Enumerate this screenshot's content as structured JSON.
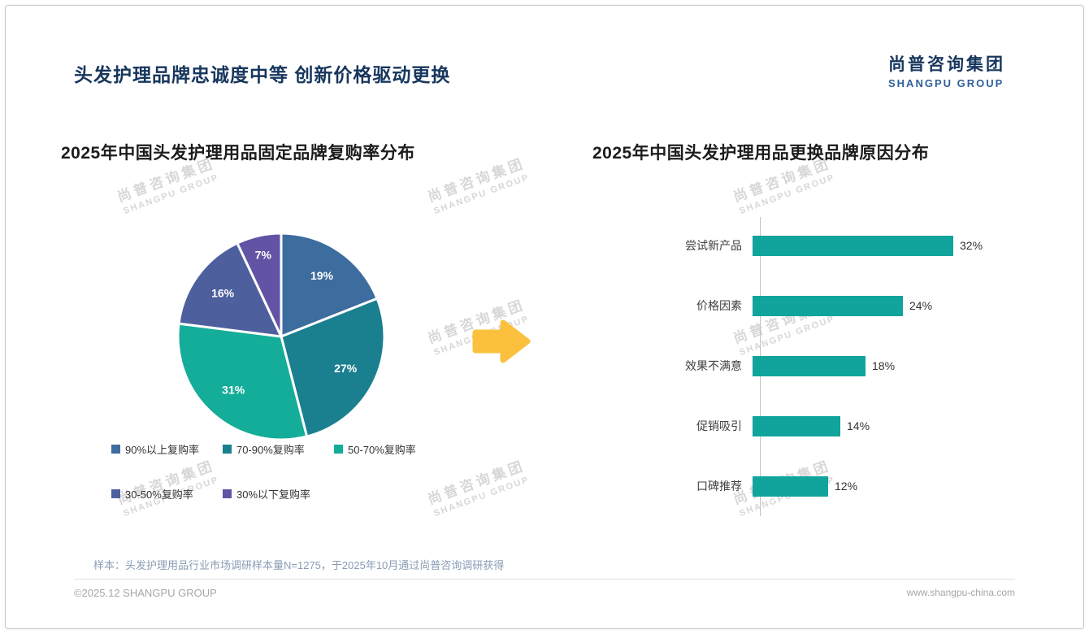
{
  "page": {
    "title": "头发护理品牌忠诚度中等 创新价格驱动更换",
    "logo": {
      "cn": "尚普咨询集团",
      "en": "SHANGPU GROUP"
    },
    "watermark": {
      "cn": "尚普咨询集团",
      "en": "SHANGPU GROUP"
    },
    "note": "样本：头发护理用品行业市场调研样本量N=1275，于2025年10月通过尚普咨询调研获得",
    "footer": {
      "left": "©2025.12 SHANGPU GROUP",
      "right": "www.shangpu-china.com"
    }
  },
  "chart_data": [
    {
      "type": "pie",
      "title": "2025年中国头发护理用品固定品牌复购率分布",
      "labels": [
        "90%以上复购率",
        "70-90%复购率",
        "50-70%复购率",
        "30-50%复购率",
        "30%以下复购率"
      ],
      "values": [
        19,
        27,
        31,
        16,
        7
      ],
      "value_labels": [
        "19%",
        "27%",
        "31%",
        "16%",
        "7%"
      ],
      "colors": [
        "#3d6c9e",
        "#1a7f8e",
        "#14ad99",
        "#4e5f9e",
        "#6253a4"
      ],
      "legend_position": "bottom",
      "start_angle_deg": 0,
      "direction": "clockwise"
    },
    {
      "type": "bar",
      "orientation": "horizontal",
      "title": "2025年中国头发护理用品更换品牌原因分布",
      "categories": [
        "尝试新产品",
        "价格因素",
        "效果不满意",
        "促销吸引",
        "口碑推荐"
      ],
      "values": [
        32,
        24,
        18,
        14,
        12
      ],
      "value_labels": [
        "32%",
        "24%",
        "18%",
        "14%",
        "12%"
      ],
      "bar_color": "#10a49d",
      "xlim": [
        0,
        35
      ],
      "grid": false,
      "legend": false
    }
  ],
  "arrow_color": "#fbc03d"
}
